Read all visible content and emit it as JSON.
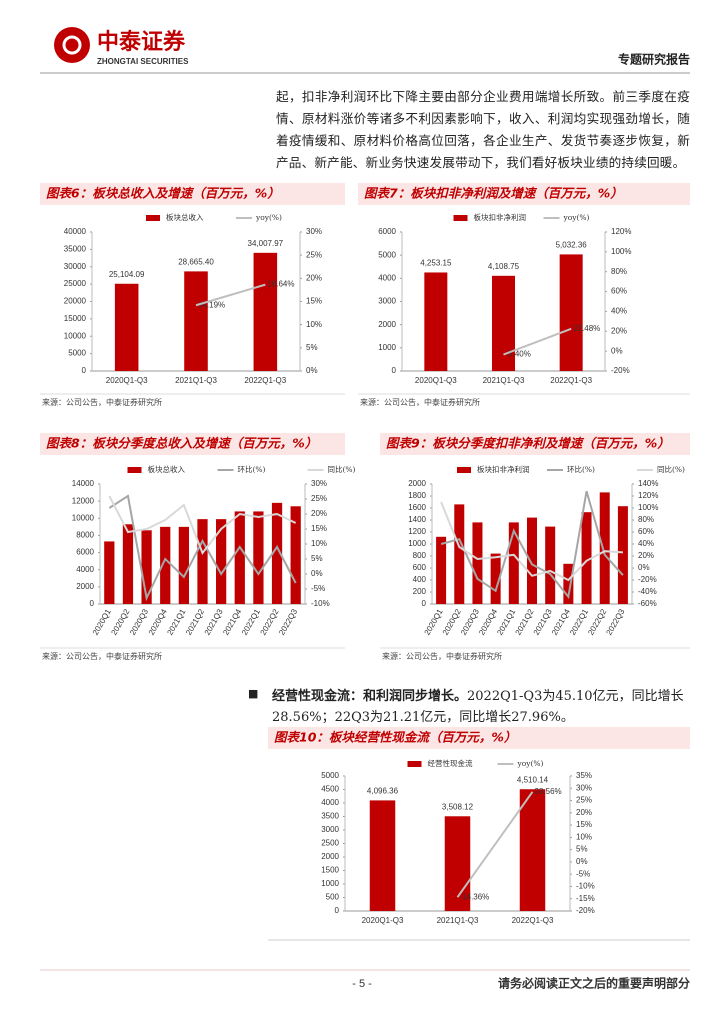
{
  "header": {
    "logo_cn": "中泰证券",
    "logo_en": "ZHONGTAI SECURITIES",
    "report_type": "专题研究报告"
  },
  "paragraph": "起，扣非净利润环比下降主要由部分企业费用端增长所致。前三季度在疫情、原材料涨价等诸多不利因素影响下，收入、利润均实现强劲增长，随着疫情缓和、原材料价格高位回落，各企业生产、发货节奏逐步恢复，新产品、新产能、新业务快速发展带动下，我们看好板块业绩的持续回暖。",
  "bullet": {
    "lead": "经营性现金流：和利润同步增长。",
    "text": "2022Q1-Q3为45.10亿元，同比增长28.56%；22Q3为21.21亿元，同比增长27.96%。"
  },
  "footer": {
    "page": "- 5 -",
    "notice": "请务必阅读正文之后的重要声明部分"
  },
  "chart_data": [
    {
      "type": "combo",
      "title": "图表6：板块总收入及增速（百万元，%）",
      "source": "来源：公司公告，中泰证券研究所",
      "categories": [
        "2020Q1-Q3",
        "2021Q1-Q3",
        "2022Q1-Q3"
      ],
      "series": [
        {
          "name": "板块总收入",
          "kind": "bar",
          "color": "#c00000",
          "values": [
            25104.09,
            28665.4,
            34007.97
          ],
          "value_labels": [
            "25,104.09",
            "28,665.40",
            "34,007.97"
          ]
        },
        {
          "name": "yoy(%)",
          "kind": "line",
          "axis": "y2",
          "color": "#bfbfbf",
          "values": [
            null,
            14.19,
            18.64
          ],
          "value_labels": [
            null,
            "14.19%",
            "18.64%"
          ]
        }
      ],
      "ylim": [
        0,
        40000
      ],
      "yticks": [
        0,
        5000,
        10000,
        15000,
        20000,
        25000,
        30000,
        35000,
        40000
      ],
      "y2lim": [
        0,
        30
      ],
      "y2ticks": [
        {
          "value": 0,
          "label": "0%"
        },
        {
          "value": 5,
          "label": "5%"
        },
        {
          "value": 10,
          "label": "10%"
        },
        {
          "value": 15,
          "label": "15%"
        },
        {
          "value": 20,
          "label": "20%"
        },
        {
          "value": 25,
          "label": "25%"
        },
        {
          "value": 30,
          "label": "30%"
        }
      ]
    },
    {
      "type": "combo",
      "title": "图表7：板块扣非净利润及增速（百万元，%）",
      "source": "来源：公司公告，中泰证券研究所",
      "categories": [
        "2020Q1-Q3",
        "2021Q1-Q3",
        "2022Q1-Q3"
      ],
      "series": [
        {
          "name": "板块扣非净利润",
          "kind": "bar",
          "color": "#c00000",
          "values": [
            4253.15,
            4108.75,
            5032.36
          ],
          "value_labels": [
            "4,253.15",
            "4,108.75",
            "5,032.36"
          ]
        },
        {
          "name": "yoy(%)",
          "kind": "line",
          "axis": "y2",
          "color": "#bfbfbf",
          "values": [
            null,
            -3.4,
            22.48
          ],
          "value_labels": [
            null,
            "-3.40%",
            "22.48%"
          ]
        }
      ],
      "ylim": [
        0,
        6000
      ],
      "yticks": [
        0,
        1000,
        2000,
        3000,
        4000,
        5000,
        6000
      ],
      "y2lim": [
        -20,
        120
      ],
      "y2ticks": [
        {
          "value": -20,
          "label": "-20%"
        },
        {
          "value": 0,
          "label": "0%"
        },
        {
          "value": 20,
          "label": "20%"
        },
        {
          "value": 40,
          "label": "40%"
        },
        {
          "value": 60,
          "label": "60%"
        },
        {
          "value": 80,
          "label": "80%"
        },
        {
          "value": 100,
          "label": "100%"
        },
        {
          "value": 120,
          "label": "120%"
        }
      ]
    },
    {
      "type": "combo",
      "title": "图表8：板块分季度总收入及增速（百万元，%）",
      "source": "来源：公司公告，中泰证券研究所",
      "categories": [
        "2020Q1",
        "2020Q2",
        "2020Q3",
        "2020Q4",
        "2021Q1",
        "2021Q2",
        "2021Q3",
        "2021Q4",
        "2022Q1",
        "2022Q2",
        "2022Q3"
      ],
      "series": [
        {
          "name": "板块总收入",
          "kind": "bar",
          "color": "#c00000",
          "values": [
            7300,
            9300,
            8600,
            9000,
            9000,
            9900,
            9900,
            10800,
            10800,
            11800,
            11400
          ]
        },
        {
          "name": "环比(%)",
          "kind": "line",
          "axis": "y2",
          "color": "#a6a6a6",
          "values": [
            22,
            26,
            -8,
            5,
            -1,
            11,
            0,
            9,
            0,
            9,
            -3
          ]
        },
        {
          "name": "同比(%)",
          "kind": "line",
          "axis": "y2",
          "color": "#d9d9d9",
          "values": [
            26,
            14,
            15,
            18,
            23,
            7,
            15,
            20,
            19,
            20,
            17
          ]
        }
      ],
      "ylim": [
        0,
        14000
      ],
      "yticks": [
        0,
        2000,
        4000,
        6000,
        8000,
        10000,
        12000,
        14000
      ],
      "y2lim": [
        -10,
        30
      ],
      "y2ticks": [
        {
          "value": -10,
          "label": "-10%"
        },
        {
          "value": -5,
          "label": "-5%"
        },
        {
          "value": 0,
          "label": "0%"
        },
        {
          "value": 5,
          "label": "5%"
        },
        {
          "value": 10,
          "label": "10%"
        },
        {
          "value": 15,
          "label": "15%"
        },
        {
          "value": 20,
          "label": "20%"
        },
        {
          "value": 25,
          "label": "25%"
        },
        {
          "value": 30,
          "label": "30%"
        }
      ]
    },
    {
      "type": "combo",
      "title": "图表9：板块分季度扣非净利及增速（百万元，%）",
      "source": "来源：公司公告，中泰证券研究所",
      "categories": [
        "2020Q1",
        "2020Q2",
        "2020Q3",
        "2020Q4",
        "2021Q1",
        "2021Q2",
        "2021Q3",
        "2021Q4",
        "2022Q1",
        "2022Q2",
        "2022Q3"
      ],
      "series": [
        {
          "name": "板块扣非净利润",
          "kind": "bar",
          "color": "#c00000",
          "values": [
            1120,
            1660,
            1360,
            840,
            1360,
            1440,
            1290,
            670,
            1530,
            1860,
            1630
          ]
        },
        {
          "name": "环比(%)",
          "kind": "line",
          "axis": "y2",
          "color": "#a6a6a6",
          "values": [
            40,
            48,
            -18,
            -38,
            62,
            6,
            -10,
            -48,
            128,
            22,
            -12
          ]
        },
        {
          "name": "同比(%)",
          "kind": "line",
          "axis": "y2",
          "color": "#d9d9d9",
          "values": [
            110,
            35,
            15,
            18,
            22,
            -13,
            -5,
            -20,
            12,
            28,
            26
          ]
        }
      ],
      "ylim": [
        0,
        2000
      ],
      "yticks": [
        0,
        200,
        400,
        600,
        800,
        1000,
        1200,
        1400,
        1600,
        1800,
        2000
      ],
      "y2lim": [
        -60,
        140
      ],
      "y2ticks": [
        {
          "value": -60,
          "label": "-60%"
        },
        {
          "value": -40,
          "label": "-40%"
        },
        {
          "value": -20,
          "label": "-20%"
        },
        {
          "value": 0,
          "label": "0%"
        },
        {
          "value": 20,
          "label": "20%"
        },
        {
          "value": 40,
          "label": "40%"
        },
        {
          "value": 60,
          "label": "60%"
        },
        {
          "value": 80,
          "label": "80%"
        },
        {
          "value": 100,
          "label": "100%"
        },
        {
          "value": 120,
          "label": "120%"
        },
        {
          "value": 140,
          "label": "140%"
        }
      ]
    },
    {
      "type": "combo",
      "title": "图表10：板块经营性现金流（百万元，%）",
      "categories": [
        "2020Q1-Q3",
        "2021Q1-Q3",
        "2022Q1-Q3"
      ],
      "series": [
        {
          "name": "经营性现金流",
          "kind": "bar",
          "color": "#c00000",
          "values": [
            4096.36,
            3508.12,
            4510.14
          ],
          "value_labels": [
            "4,096.36",
            "3,508.12",
            "4,510.14"
          ]
        },
        {
          "name": "yoy(%)",
          "kind": "line",
          "axis": "y2",
          "color": "#bfbfbf",
          "values": [
            null,
            -14.36,
            28.56
          ],
          "value_labels": [
            null,
            "-14.36%",
            "28.56%"
          ]
        }
      ],
      "ylim": [
        0,
        5000
      ],
      "yticks": [
        0,
        500,
        1000,
        1500,
        2000,
        2500,
        3000,
        3500,
        4000,
        4500,
        5000
      ],
      "y2lim": [
        -20,
        35
      ],
      "y2ticks": [
        {
          "value": -20,
          "label": "-20%"
        },
        {
          "value": -15,
          "label": "-15%"
        },
        {
          "value": -10,
          "label": "-10%"
        },
        {
          "value": -5,
          "label": "-5%"
        },
        {
          "value": 0,
          "label": "0%"
        },
        {
          "value": 5,
          "label": "5%"
        },
        {
          "value": 10,
          "label": "10%"
        },
        {
          "value": 15,
          "label": "15%"
        },
        {
          "value": 20,
          "label": "20%"
        },
        {
          "value": 25,
          "label": "25%"
        },
        {
          "value": 30,
          "label": "30%"
        },
        {
          "value": 35,
          "label": "35%"
        }
      ]
    }
  ]
}
